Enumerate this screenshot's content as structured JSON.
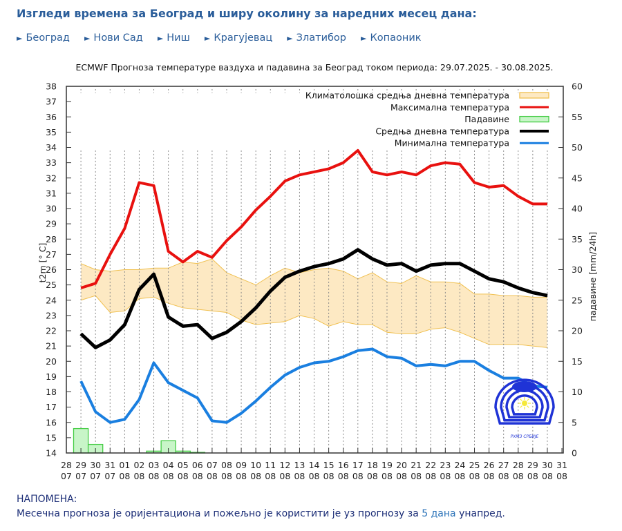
{
  "header": {
    "title": "Изгледи времена за Београд и ширу околину за наредних месец дана:"
  },
  "nav": {
    "arrow_icon": "triangle-right-icon",
    "cities": [
      {
        "label": "Београд"
      },
      {
        "label": "Нови Сад"
      },
      {
        "label": "Ниш"
      },
      {
        "label": "Крагујевац"
      },
      {
        "label": "Златибор"
      },
      {
        "label": "Копаоник"
      }
    ]
  },
  "chart_title": "ECMWF Прогноза температуре ваздуха и падавина за Београд током периода: 29.07.2025. - 30.08.2025.",
  "note": {
    "heading": "НАПОМЕНА:",
    "text_before": "Месечна прогноза је оријентациона и пожељно је користити је уз прогнозу за ",
    "link": "5 дана",
    "text_after": " унапред."
  },
  "colors": {
    "max": "#e8110f",
    "mean": "#000000",
    "min": "#1a7fe0",
    "clim_fill": "#fde9c3",
    "clim_edge": "#f0c050",
    "precip_fill": "#c8f5c8",
    "precip_edge": "#44cc44",
    "text_blue": "#2a5d9a"
  },
  "chart_data": {
    "type": "line",
    "title": "ECMWF Прогноза температуре ваздуха и падавина за Београд током периода: 29.07.2025. - 30.08.2025.",
    "xlabel": "",
    "ylabel": "t2m [° C]",
    "y2label": "падавине [mm/24h]",
    "ylim": [
      14,
      38
    ],
    "y2lim": [
      0,
      60
    ],
    "yticks": [
      14,
      15,
      16,
      17,
      18,
      19,
      20,
      21,
      22,
      23,
      24,
      25,
      26,
      27,
      28,
      29,
      30,
      31,
      32,
      33,
      34,
      35,
      36,
      37,
      38
    ],
    "y2ticks": [
      0,
      5,
      10,
      15,
      20,
      25,
      30,
      35,
      40,
      45,
      50,
      55,
      60
    ],
    "grid": "vertical dotted",
    "legend_position": "top-right",
    "x_ticks": [
      [
        "28",
        "07"
      ],
      [
        "29",
        "07"
      ],
      [
        "30",
        "07"
      ],
      [
        "31",
        "07"
      ],
      [
        "01",
        "08"
      ],
      [
        "02",
        "08"
      ],
      [
        "03",
        "08"
      ],
      [
        "04",
        "08"
      ],
      [
        "05",
        "08"
      ],
      [
        "06",
        "08"
      ],
      [
        "07",
        "08"
      ],
      [
        "08",
        "08"
      ],
      [
        "09",
        "08"
      ],
      [
        "10",
        "08"
      ],
      [
        "11",
        "08"
      ],
      [
        "12",
        "08"
      ],
      [
        "13",
        "08"
      ],
      [
        "14",
        "08"
      ],
      [
        "15",
        "08"
      ],
      [
        "16",
        "08"
      ],
      [
        "17",
        "08"
      ],
      [
        "18",
        "08"
      ],
      [
        "19",
        "08"
      ],
      [
        "20",
        "08"
      ],
      [
        "21",
        "08"
      ],
      [
        "22",
        "08"
      ],
      [
        "23",
        "08"
      ],
      [
        "24",
        "08"
      ],
      [
        "25",
        "08"
      ],
      [
        "26",
        "08"
      ],
      [
        "27",
        "08"
      ],
      [
        "28",
        "08"
      ],
      [
        "29",
        "08"
      ],
      [
        "30",
        "08"
      ],
      [
        "31",
        "08"
      ]
    ],
    "x": [
      "29.07",
      "30.07",
      "31.07",
      "01.08",
      "02.08",
      "03.08",
      "04.08",
      "05.08",
      "06.08",
      "07.08",
      "08.08",
      "09.08",
      "10.08",
      "11.08",
      "12.08",
      "13.08",
      "14.08",
      "15.08",
      "16.08",
      "17.08",
      "18.08",
      "19.08",
      "20.08",
      "21.08",
      "22.08",
      "23.08",
      "24.08",
      "25.08",
      "26.08",
      "27.08",
      "28.08",
      "29.08",
      "30.08"
    ],
    "legend": [
      {
        "key": "clim",
        "label": "Климатолошка средња дневна температура",
        "kind": "box"
      },
      {
        "key": "max",
        "label": "Максимална температура",
        "kind": "line"
      },
      {
        "key": "precip",
        "label": "Падавине",
        "kind": "box"
      },
      {
        "key": "mean",
        "label": "Средња дневна температура",
        "kind": "line"
      },
      {
        "key": "min",
        "label": "Минимална температура",
        "kind": "line"
      }
    ],
    "series": [
      {
        "name": "Максимална температура",
        "key": "max",
        "values": [
          24.8,
          25.1,
          27.0,
          28.7,
          31.7,
          31.5,
          27.2,
          26.5,
          27.2,
          26.8,
          27.9,
          28.8,
          29.9,
          30.8,
          31.8,
          32.2,
          32.4,
          32.6,
          33.0,
          33.8,
          32.4,
          32.2,
          32.4,
          32.2,
          32.8,
          33.0,
          32.9,
          31.7,
          31.4,
          31.5,
          30.8,
          30.3,
          30.3
        ]
      },
      {
        "name": "Средња дневна температура",
        "key": "mean",
        "values": [
          21.8,
          20.9,
          21.4,
          22.4,
          24.7,
          25.7,
          22.9,
          22.3,
          22.4,
          21.5,
          21.9,
          22.6,
          23.5,
          24.6,
          25.5,
          25.9,
          26.2,
          26.4,
          26.7,
          27.3,
          26.7,
          26.3,
          26.4,
          25.9,
          26.3,
          26.4,
          26.4,
          25.9,
          25.4,
          25.2,
          24.8,
          24.5,
          24.3
        ]
      },
      {
        "name": "Минимална температура",
        "key": "min",
        "values": [
          18.7,
          16.7,
          16.0,
          16.2,
          17.5,
          19.9,
          18.6,
          18.1,
          17.6,
          16.1,
          16.0,
          16.6,
          17.4,
          18.3,
          19.1,
          19.6,
          19.9,
          20.0,
          20.3,
          20.7,
          20.8,
          20.3,
          20.2,
          19.7,
          19.8,
          19.7,
          20.0,
          20.0,
          19.4,
          18.9,
          18.9,
          18.4,
          18.3
        ]
      }
    ],
    "climatology": {
      "name": "Климатолошка средња дневна температура",
      "upper": [
        26.4,
        26.0,
        25.9,
        26.0,
        26.0,
        26.1,
        26.1,
        26.5,
        26.4,
        26.7,
        25.8,
        25.4,
        25.0,
        25.6,
        26.1,
        25.8,
        26.0,
        26.1,
        25.9,
        25.4,
        25.8,
        25.2,
        25.1,
        25.6,
        25.2,
        25.2,
        25.1,
        24.4,
        24.4,
        24.3,
        24.3,
        24.2,
        24.2
      ],
      "lower": [
        24.0,
        24.3,
        23.2,
        23.3,
        24.1,
        24.2,
        23.8,
        23.5,
        23.4,
        23.3,
        23.2,
        22.7,
        22.4,
        22.5,
        22.6,
        23.0,
        22.8,
        22.3,
        22.6,
        22.4,
        22.4,
        21.9,
        21.8,
        21.8,
        22.1,
        22.2,
        21.9,
        21.5,
        21.1,
        21.1,
        21.1,
        21.0,
        20.9
      ]
    },
    "precipitation": {
      "name": "Падавине",
      "unit": "mm/24h",
      "values": [
        4.0,
        1.4,
        0,
        0,
        0,
        0.3,
        2.0,
        0.3,
        0.1,
        0,
        0,
        0,
        0,
        0,
        0,
        0,
        0,
        0,
        0,
        0,
        0,
        0,
        0,
        0,
        0,
        0,
        0,
        0,
        0,
        0,
        0,
        0,
        0
      ]
    }
  },
  "logo": {
    "icon": "rhmz-logo-icon",
    "caption": "РХМЗ СРБИЈЕ"
  }
}
